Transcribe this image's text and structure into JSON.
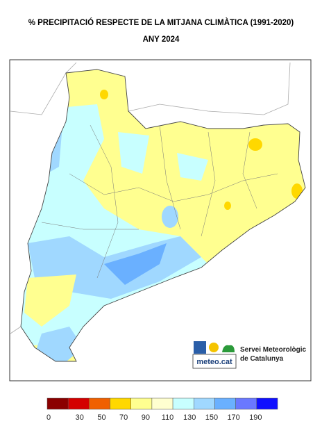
{
  "header": {
    "title": "% PRECIPITACIÓ RESPECTE DE LA MITJANA CLIMÀTICA (1991-2020)",
    "subtitle": "ANY 2024"
  },
  "logo": {
    "brand": "meteo.cat",
    "org_line1": "Servei Meteorològic",
    "org_line2": "de Catalunya"
  },
  "legend": {
    "colors": [
      "#8b0000",
      "#d40000",
      "#f06000",
      "#ffd800",
      "#ffff90",
      "#ffffd0",
      "#c8ffff",
      "#a0d8ff",
      "#6ab0ff",
      "#6a78ff",
      "#1010ff"
    ],
    "ticks": [
      0,
      30,
      50,
      70,
      90,
      110,
      130,
      150,
      170,
      190
    ]
  }
}
